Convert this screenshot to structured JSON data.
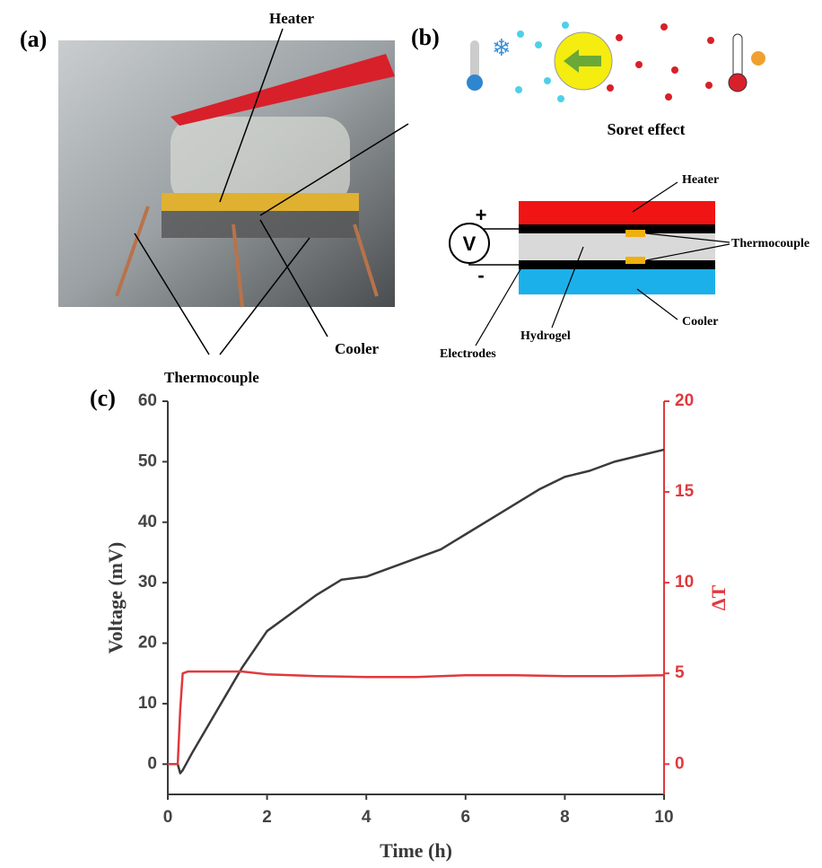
{
  "figure": {
    "panel_a": {
      "label": "(a)",
      "heater": "Heater",
      "cooler": "Cooler",
      "thermocouple": "Thermocouple"
    },
    "panel_b": {
      "label": "(b)",
      "caption": "Soret effect",
      "heater": "Heater",
      "thermocouple": "Thermocouple",
      "cooler": "Cooler",
      "electrodes": "Electrodes",
      "hydrogel": "Hydrogel",
      "meter": "V",
      "plus": "+",
      "minus": "-"
    },
    "panel_c": {
      "label": "(c)"
    }
  },
  "chart_data": {
    "type": "line",
    "xlabel": "Time (h)",
    "ylabel": "Voltage (mV)",
    "y2label": "ΔT",
    "xlim": [
      0,
      10
    ],
    "xticks": [
      0,
      2,
      4,
      6,
      8,
      10
    ],
    "ylim": [
      -5,
      60
    ],
    "yticks": [
      0,
      10,
      20,
      30,
      40,
      50,
      60
    ],
    "y2lim": [
      -1.67,
      20
    ],
    "y2ticks": [
      0,
      5,
      10,
      15,
      20
    ],
    "series": [
      {
        "color": "#3a3a3a",
        "x": [
          0.2,
          0.25,
          0.3,
          0.5,
          0.75,
          1,
          1.25,
          1.5,
          1.75,
          2,
          2.5,
          3,
          3.5,
          4,
          4.5,
          5,
          5.5,
          6,
          6.5,
          7,
          7.5,
          8,
          8.5,
          9,
          9.5,
          10
        ],
        "values": [
          0,
          -1.5,
          -1,
          2,
          5.5,
          9,
          12.5,
          16,
          19,
          22,
          25,
          28,
          30.5,
          31,
          32.5,
          34,
          35.5,
          38,
          40.5,
          43,
          45.5,
          47.5,
          48.5,
          50,
          51,
          52
        ]
      },
      {
        "color": "#e0393e",
        "axis": "y2",
        "x": [
          0,
          0.2,
          0.25,
          0.3,
          0.4,
          1,
          1.5,
          2,
          3,
          4,
          5,
          6,
          7,
          8,
          9,
          10
        ],
        "values": [
          0,
          0,
          3,
          5,
          5.1,
          5.1,
          5.1,
          4.95,
          4.85,
          4.8,
          4.8,
          4.9,
          4.9,
          4.85,
          4.85,
          4.9
        ]
      }
    ]
  }
}
